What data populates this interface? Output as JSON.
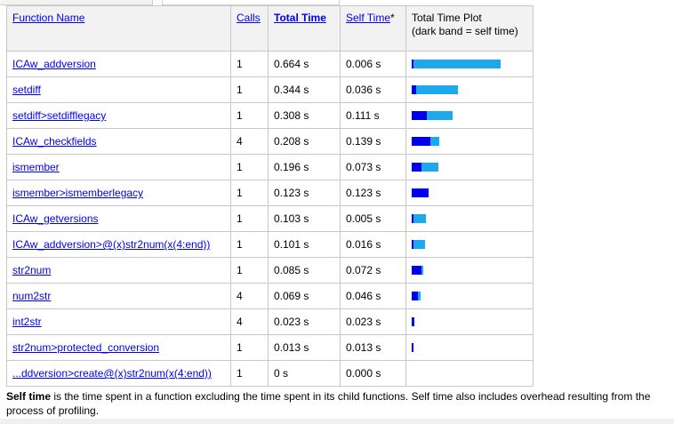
{
  "header": {
    "function_name": "Function Name",
    "calls": "Calls",
    "total_time": "Total Time",
    "self_time": "Self Time",
    "self_time_marker": "*",
    "plot_title": "Total Time Plot",
    "plot_subtitle": "(dark band = self time)"
  },
  "rows": [
    {
      "name": "ICAw_addversion",
      "calls": "1",
      "total": "0.664 s",
      "self": "0.006 s",
      "total_val": 0.664,
      "self_val": 0.006
    },
    {
      "name": "setdiff",
      "calls": "1",
      "total": "0.344 s",
      "self": "0.036 s",
      "total_val": 0.344,
      "self_val": 0.036
    },
    {
      "name": "setdiff>setdifflegacy",
      "calls": "1",
      "total": "0.308 s",
      "self": "0.111 s",
      "total_val": 0.308,
      "self_val": 0.111
    },
    {
      "name": "ICAw_checkfields",
      "calls": "4",
      "total": "0.208 s",
      "self": "0.139 s",
      "total_val": 0.208,
      "self_val": 0.139
    },
    {
      "name": "ismember",
      "calls": "1",
      "total": "0.196 s",
      "self": "0.073 s",
      "total_val": 0.196,
      "self_val": 0.073
    },
    {
      "name": "ismember>ismemberlegacy",
      "calls": "1",
      "total": "0.123 s",
      "self": "0.123 s",
      "total_val": 0.123,
      "self_val": 0.123
    },
    {
      "name": "ICAw_getversions",
      "calls": "1",
      "total": "0.103 s",
      "self": "0.005 s",
      "total_val": 0.103,
      "self_val": 0.005
    },
    {
      "name": "ICAw_addversion>@(x)str2num(x(4:end))",
      "calls": "1",
      "total": "0.101 s",
      "self": "0.016 s",
      "total_val": 0.101,
      "self_val": 0.016
    },
    {
      "name": "str2num",
      "calls": "1",
      "total": "0.085 s",
      "self": "0.072 s",
      "total_val": 0.085,
      "self_val": 0.072
    },
    {
      "name": "num2str",
      "calls": "4",
      "total": "0.069 s",
      "self": "0.046 s",
      "total_val": 0.069,
      "self_val": 0.046
    },
    {
      "name": "int2str",
      "calls": "4",
      "total": "0.023 s",
      "self": "0.023 s",
      "total_val": 0.023,
      "self_val": 0.023
    },
    {
      "name": "str2num>protected_conversion",
      "calls": "1",
      "total": "0.013 s",
      "self": "0.013 s",
      "total_val": 0.013,
      "self_val": 0.013
    },
    {
      "name": "...ddversion>create@(x)str2num(x(4:end))",
      "calls": "1",
      "total": "0 s",
      "self": "0.000 s",
      "total_val": 0,
      "self_val": 0
    }
  ],
  "plot_max": 0.664,
  "colors": {
    "total_bar": "#1ea9ee",
    "self_bar": "#0000ee",
    "link": "#0000ee"
  },
  "footnote": {
    "term": "Self time",
    "text": " is the time spent in a function excluding the time spent in its child functions. Self time also includes overhead resulting from the process of profiling."
  }
}
